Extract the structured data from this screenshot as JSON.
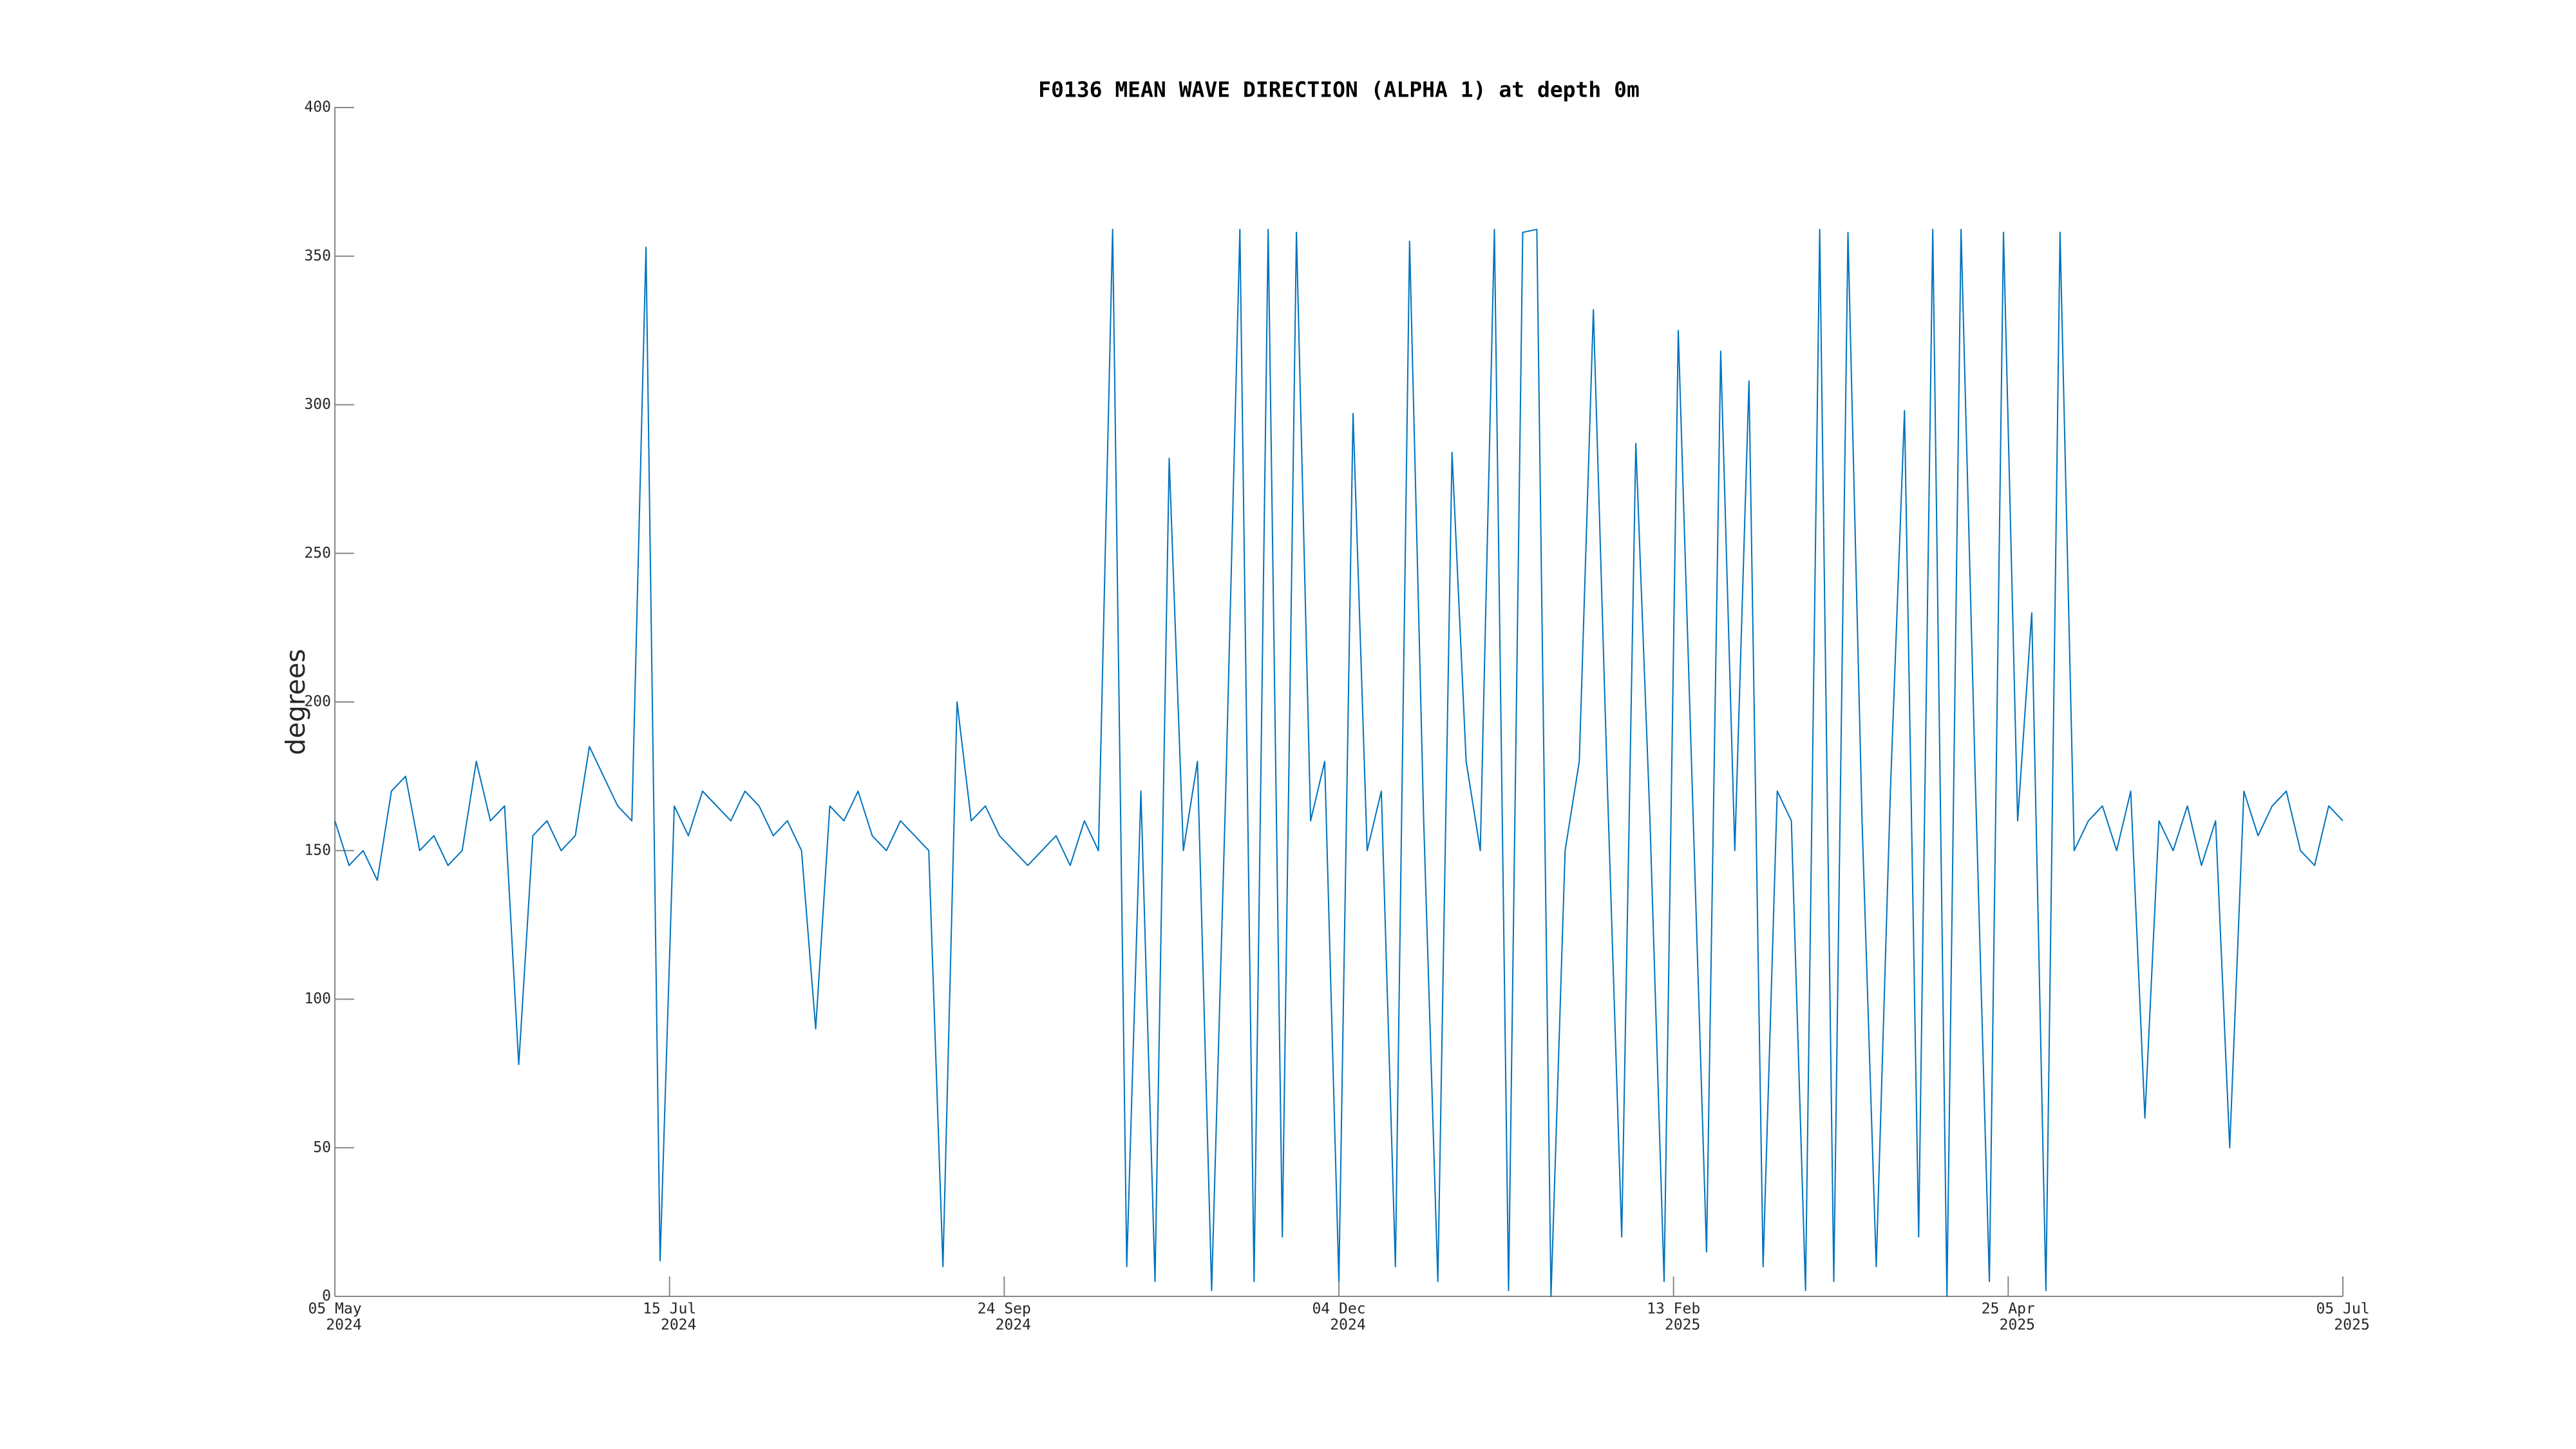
{
  "chart_data": {
    "type": "line",
    "title": "F0136 MEAN WAVE DIRECTION (ALPHA 1) at depth 0m",
    "y_label": "degrees",
    "color": "#0072bd",
    "x": [
      "2024-05-05",
      "2024-05-08",
      "2024-05-11",
      "2024-05-14",
      "2024-05-17",
      "2024-05-20",
      "2024-05-23",
      "2024-05-26",
      "2024-05-29",
      "2024-06-01",
      "2024-06-04",
      "2024-06-07",
      "2024-06-10",
      "2024-06-13",
      "2024-06-16",
      "2024-06-19",
      "2024-06-22",
      "2024-06-25",
      "2024-06-28",
      "2024-07-01",
      "2024-07-04",
      "2024-07-07",
      "2024-07-10",
      "2024-07-13",
      "2024-07-16",
      "2024-07-19",
      "2024-07-22",
      "2024-07-25",
      "2024-07-28",
      "2024-07-31",
      "2024-08-03",
      "2024-08-06",
      "2024-08-09",
      "2024-08-12",
      "2024-08-15",
      "2024-08-18",
      "2024-08-21",
      "2024-08-24",
      "2024-08-27",
      "2024-08-30",
      "2024-09-02",
      "2024-09-05",
      "2024-09-08",
      "2024-09-11",
      "2024-09-14",
      "2024-09-17",
      "2024-09-20",
      "2024-09-23",
      "2024-09-26",
      "2024-09-29",
      "2024-10-02",
      "2024-10-05",
      "2024-10-08",
      "2024-10-11",
      "2024-10-14",
      "2024-10-17",
      "2024-10-20",
      "2024-10-23",
      "2024-10-26",
      "2024-10-29",
      "2024-11-01",
      "2024-11-04",
      "2024-11-07",
      "2024-11-10",
      "2024-11-13",
      "2024-11-16",
      "2024-11-19",
      "2024-11-22",
      "2024-11-25",
      "2024-11-28",
      "2024-12-01",
      "2024-12-04",
      "2024-12-07",
      "2024-12-10",
      "2024-12-13",
      "2024-12-16",
      "2024-12-19",
      "2024-12-22",
      "2024-12-25",
      "2024-12-28",
      "2024-12-31",
      "2025-01-03",
      "2025-01-06",
      "2025-01-09",
      "2025-01-12",
      "2025-01-15",
      "2025-01-18",
      "2025-01-21",
      "2025-01-24",
      "2025-01-27",
      "2025-01-30",
      "2025-02-02",
      "2025-02-05",
      "2025-02-08",
      "2025-02-11",
      "2025-02-14",
      "2025-02-17",
      "2025-02-20",
      "2025-02-23",
      "2025-02-26",
      "2025-03-01",
      "2025-03-04",
      "2025-03-07",
      "2025-03-10",
      "2025-03-13",
      "2025-03-16",
      "2025-03-19",
      "2025-03-22",
      "2025-03-25",
      "2025-03-28",
      "2025-03-31",
      "2025-04-03",
      "2025-04-06",
      "2025-04-09",
      "2025-04-12",
      "2025-04-15",
      "2025-04-18",
      "2025-04-21",
      "2025-04-24",
      "2025-04-27",
      "2025-04-30",
      "2025-05-03",
      "2025-05-06",
      "2025-05-09",
      "2025-05-12",
      "2025-05-15",
      "2025-05-18",
      "2025-05-21",
      "2025-05-24",
      "2025-05-27",
      "2025-05-30",
      "2025-06-02",
      "2025-06-05",
      "2025-06-08",
      "2025-06-11",
      "2025-06-14",
      "2025-06-17",
      "2025-06-20",
      "2025-06-23",
      "2025-06-26",
      "2025-06-29",
      "2025-07-02",
      "2025-07-05"
    ],
    "values": [
      160,
      145,
      150,
      140,
      170,
      175,
      150,
      155,
      145,
      150,
      180,
      160,
      165,
      78,
      155,
      160,
      150,
      155,
      185,
      175,
      165,
      160,
      353,
      12,
      165,
      155,
      170,
      165,
      160,
      170,
      165,
      155,
      160,
      150,
      90,
      165,
      160,
      170,
      155,
      150,
      160,
      155,
      150,
      10,
      200,
      160,
      165,
      155,
      150,
      145,
      150,
      155,
      145,
      160,
      150,
      359,
      10,
      170,
      5,
      282,
      150,
      180,
      2,
      170,
      359,
      5,
      359,
      20,
      358,
      160,
      180,
      5,
      297,
      150,
      170,
      10,
      355,
      160,
      5,
      284,
      180,
      150,
      359,
      2,
      358,
      359,
      0,
      150,
      180,
      332,
      170,
      20,
      287,
      160,
      5,
      325,
      170,
      15,
      318,
      150,
      308,
      10,
      170,
      160,
      2,
      359,
      5,
      358,
      160,
      10,
      170,
      298,
      20,
      359,
      0,
      359,
      175,
      5,
      358,
      160,
      230,
      2,
      358,
      150,
      160,
      165,
      150,
      170,
      60,
      160,
      150,
      165,
      145,
      160,
      50,
      170,
      155,
      165,
      170,
      150,
      145,
      165,
      160
    ],
    "xlim": [
      "2024-05-05",
      "2025-07-05"
    ],
    "xticks": [
      {
        "value": "2024-05-05",
        "label": [
          "05 May",
          "2024"
        ]
      },
      {
        "value": "2024-07-15",
        "label": [
          "15 Jul",
          "2024"
        ]
      },
      {
        "value": "2024-09-24",
        "label": [
          "24 Sep",
          "2024"
        ]
      },
      {
        "value": "2024-12-04",
        "label": [
          "04 Dec",
          "2024"
        ]
      },
      {
        "value": "2025-02-13",
        "label": [
          "13 Feb",
          "2025"
        ]
      },
      {
        "value": "2025-04-25",
        "label": [
          "25 Apr",
          "2025"
        ]
      },
      {
        "value": "2025-07-05",
        "label": [
          "05 Jul",
          "2025"
        ]
      }
    ],
    "ylim": [
      0,
      400
    ],
    "yticks": [
      0,
      50,
      100,
      150,
      200,
      250,
      300,
      350,
      400
    ]
  }
}
